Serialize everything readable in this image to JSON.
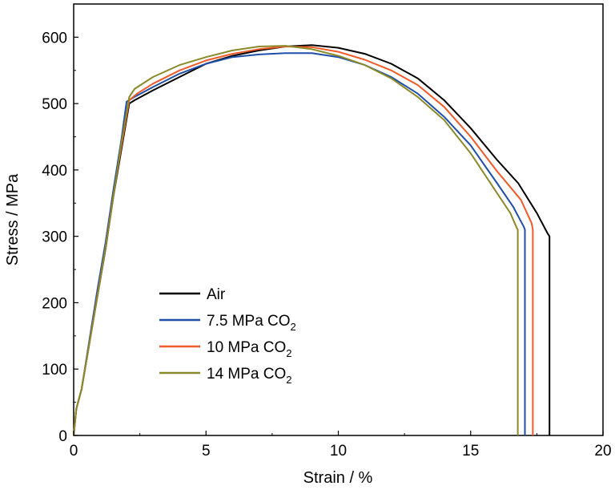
{
  "chart_data": {
    "type": "line",
    "title": "",
    "xlabel": "Strain / %",
    "ylabel": "Stress / MPa",
    "xlim": [
      0,
      20
    ],
    "ylim": [
      0,
      650
    ],
    "xticks": [
      0,
      5,
      10,
      15,
      20
    ],
    "yticks": [
      0,
      100,
      200,
      300,
      400,
      500,
      600
    ],
    "grid": false,
    "legend_position": "lower-left",
    "series": [
      {
        "name": "Air",
        "color": "#000000",
        "x": [
          0,
          0.1,
          0.3,
          0.6,
          0.9,
          1.2,
          1.5,
          1.8,
          2.1,
          2.3,
          3,
          4,
          5,
          6,
          7,
          8,
          9,
          10,
          11,
          12,
          13,
          14,
          15,
          16,
          16.8,
          17.5,
          17.9,
          17.98,
          17.98
        ],
        "y": [
          0,
          40,
          70,
          140,
          210,
          280,
          360,
          430,
          500,
          505,
          520,
          540,
          560,
          572,
          580,
          586,
          588,
          584,
          575,
          560,
          538,
          505,
          463,
          415,
          380,
          335,
          305,
          300,
          0
        ]
      },
      {
        "name": "7.5 MPa CO",
        "name_sub": "2",
        "color": "#1F4FA8",
        "x": [
          0,
          0.1,
          0.3,
          0.6,
          0.9,
          1.2,
          1.5,
          1.8,
          2.0,
          2.3,
          3,
          4,
          5,
          6,
          7,
          8,
          9,
          10,
          11,
          12,
          13,
          14,
          15,
          16,
          16.6,
          17.0,
          17.05,
          17.05
        ],
        "y": [
          0,
          40,
          70,
          145,
          220,
          290,
          370,
          445,
          503,
          510,
          525,
          545,
          560,
          570,
          574,
          576,
          576,
          570,
          558,
          540,
          515,
          480,
          437,
          380,
          345,
          315,
          310,
          0
        ]
      },
      {
        "name": "10 MPa CO",
        "name_sub": "2",
        "color": "#F05A28",
        "x": [
          0,
          0.1,
          0.3,
          0.6,
          0.9,
          1.2,
          1.5,
          1.8,
          2.1,
          2.4,
          3,
          4,
          5,
          6,
          7,
          8,
          9,
          10,
          11,
          12,
          13,
          14,
          15,
          16,
          16.9,
          17.3,
          17.35,
          17.35
        ],
        "y": [
          0,
          40,
          70,
          140,
          212,
          282,
          362,
          435,
          505,
          515,
          530,
          550,
          565,
          575,
          582,
          586,
          585,
          578,
          566,
          550,
          528,
          495,
          450,
          398,
          355,
          320,
          310,
          0
        ]
      },
      {
        "name": "14 MPa CO",
        "name_sub": "2",
        "color": "#8A8A2A",
        "x": [
          0,
          0.1,
          0.3,
          0.6,
          0.9,
          1.2,
          1.5,
          1.8,
          2.1,
          2.3,
          3,
          4,
          5,
          6,
          7,
          8,
          9,
          10,
          11,
          12,
          13,
          14,
          15,
          16,
          16.5,
          16.75,
          16.78,
          16.78
        ],
        "y": [
          0,
          40,
          70,
          140,
          210,
          282,
          360,
          440,
          510,
          522,
          540,
          558,
          570,
          580,
          586,
          587,
          582,
          572,
          558,
          538,
          510,
          475,
          425,
          365,
          335,
          312,
          310,
          0
        ]
      }
    ]
  }
}
